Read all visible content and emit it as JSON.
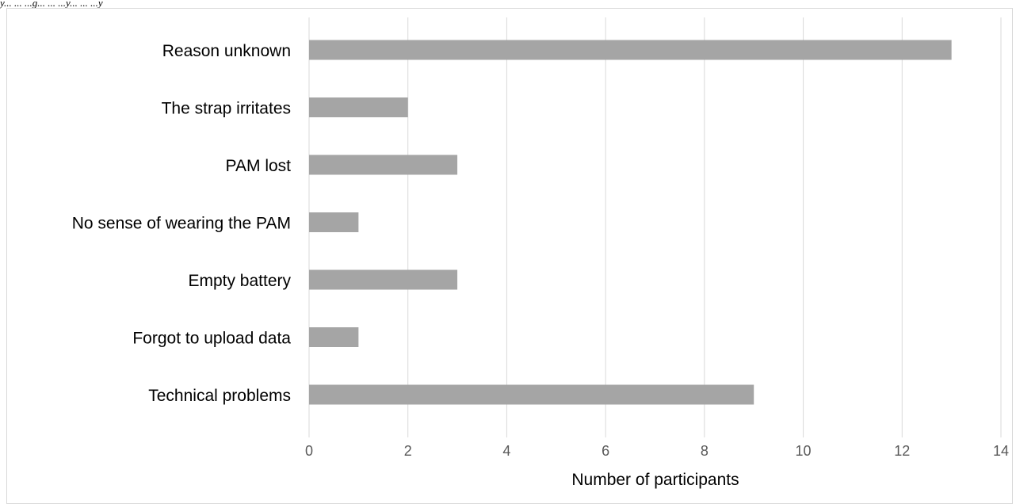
{
  "caption": "y... ... ...g... ... ...y... ... ...y",
  "chart_data": {
    "type": "bar",
    "orientation": "horizontal",
    "categories": [
      "Reason unknown",
      "The strap irritates",
      "PAM lost",
      "No sense of wearing the PAM",
      "Empty battery",
      "Forgot to upload data",
      "Technical problems"
    ],
    "values": [
      13,
      2,
      3,
      1,
      3,
      1,
      9
    ],
    "xlabel": "Number  of participants",
    "ylabel": "",
    "xlim": [
      0,
      14
    ],
    "xticks": [
      0,
      2,
      4,
      6,
      8,
      10,
      12,
      14
    ],
    "grid": true,
    "bar_color": "#a5a5a5",
    "grid_color": "#d9d9d9"
  }
}
